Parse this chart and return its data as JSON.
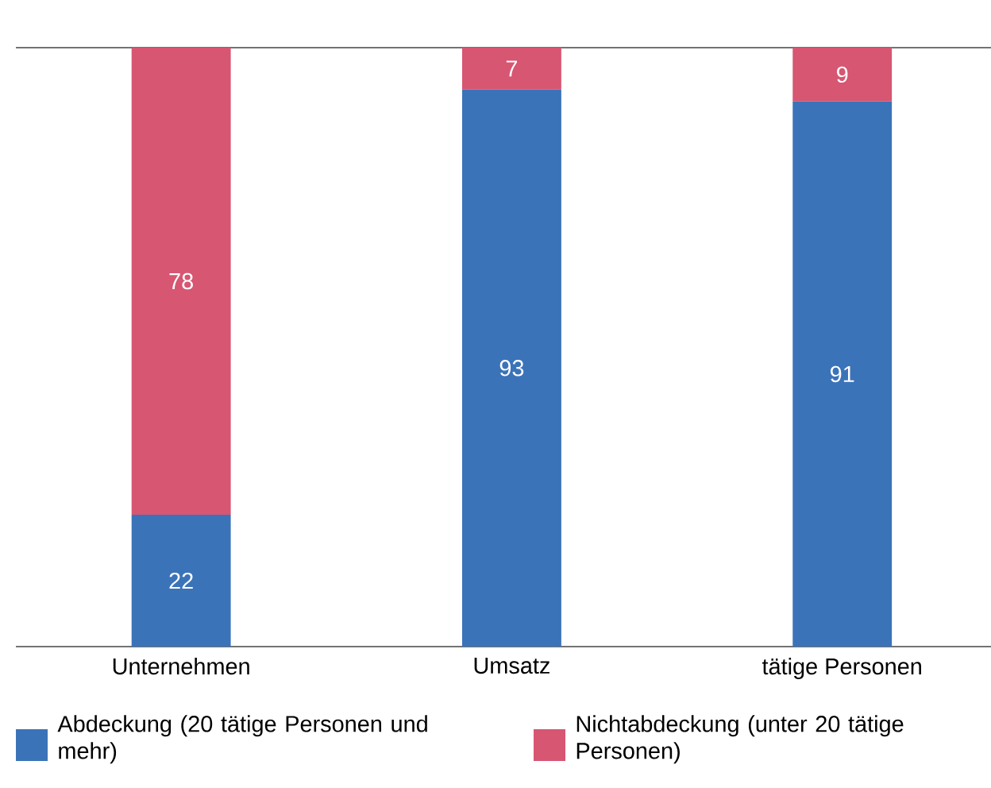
{
  "chart_data": {
    "type": "bar",
    "stacked": true,
    "categories": [
      "Unternehmen",
      "Umsatz",
      "tätige Personen"
    ],
    "series": [
      {
        "name": "Abdeckung (20 tätige Personen und mehr)",
        "color": "#3b73b9",
        "values": [
          22,
          93,
          91
        ]
      },
      {
        "name": "Nichtabdeckung (unter 20 tätige Personen)",
        "color": "#d75672",
        "values": [
          78,
          7,
          9
        ]
      }
    ],
    "data_labels": true,
    "legend": "bottom"
  }
}
